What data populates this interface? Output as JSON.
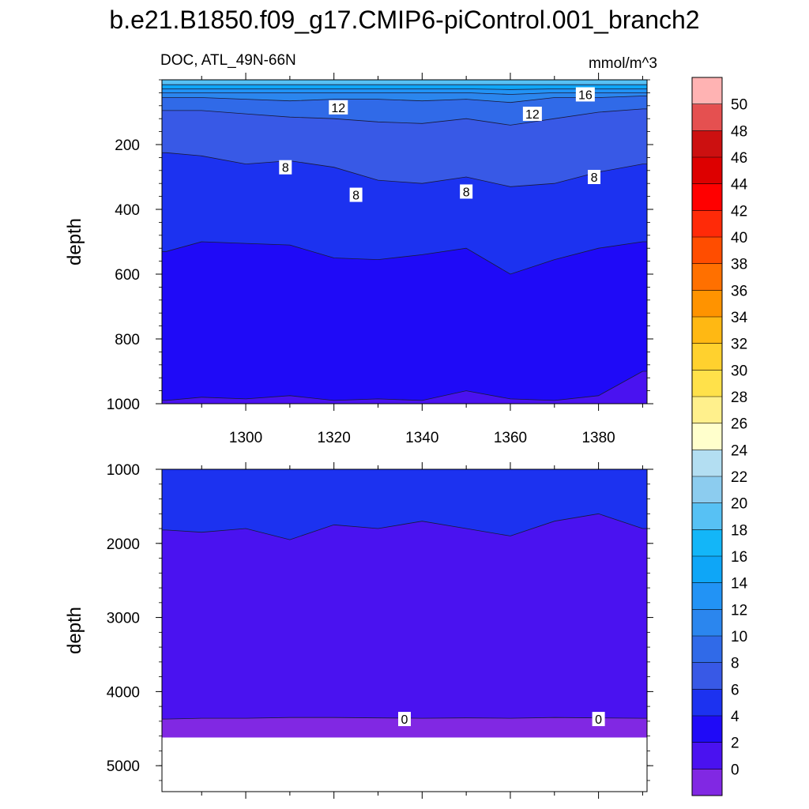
{
  "figure": {
    "title": "b.e21.B1850.f09_g17.CMIP6-piControl.001_branch2",
    "left_label": "DOC, ATL_49N-66N",
    "units": "mmol/m^3"
  },
  "colorbar": {
    "labels": [
      "0",
      "2",
      "4",
      "6",
      "8",
      "10",
      "12",
      "14",
      "16",
      "18",
      "20",
      "22",
      "24",
      "26",
      "28",
      "30",
      "32",
      "34",
      "36",
      "38",
      "40",
      "42",
      "44",
      "46",
      "48",
      "50"
    ],
    "colors": [
      "#8128e3",
      "#4a12f0",
      "#1f0af7",
      "#1c32f0",
      "#3859e6",
      "#306ae8",
      "#2b86ee",
      "#2293f5",
      "#0ea6f7",
      "#13b6f8",
      "#57c1f4",
      "#8cccef",
      "#b3def2",
      "#ffffcc",
      "#fff08c",
      "#ffe14a",
      "#ffd12e",
      "#ffb813",
      "#ff9300",
      "#ff7000",
      "#ff4d00",
      "#ff2a08",
      "#ff0000",
      "#dd0000",
      "#cc1010",
      "#e55050",
      "#ffb3b3"
    ]
  },
  "chart_data": [
    {
      "type": "contour",
      "panel": "upper",
      "title": "DOC, ATL_49N-66N",
      "xlabel": "",
      "ylabel": "depth",
      "units": "mmol/m^3",
      "xlim": [
        1281,
        1391
      ],
      "ylim": [
        1000,
        0
      ],
      "x_ticks": [
        1300,
        1320,
        1340,
        1360,
        1380
      ],
      "y_ticks": [
        200,
        400,
        600,
        800,
        1000
      ],
      "x": [
        1282,
        1290,
        1300,
        1310,
        1320,
        1330,
        1340,
        1350,
        1360,
        1370,
        1380,
        1390
      ],
      "contours": [
        {
          "level": 2,
          "depths": [
            990,
            980,
            985,
            975,
            990,
            985,
            990,
            960,
            985,
            990,
            975,
            900
          ]
        },
        {
          "level": 4,
          "depths": [
            530,
            500,
            505,
            510,
            550,
            555,
            540,
            520,
            600,
            555,
            520,
            500
          ]
        },
        {
          "level": 6,
          "depths": [
            225,
            235,
            260,
            250,
            270,
            310,
            320,
            300,
            330,
            320,
            285,
            260
          ]
        },
        {
          "level": 8,
          "depths": [
            95,
            95,
            105,
            115,
            120,
            130,
            135,
            120,
            140,
            120,
            100,
            90
          ]
        },
        {
          "level": 10,
          "depths": [
            55,
            55,
            60,
            65,
            60,
            60,
            65,
            60,
            70,
            55,
            55,
            50
          ]
        },
        {
          "level": 12,
          "depths": [
            40,
            40,
            40,
            40,
            40,
            40,
            40,
            40,
            45,
            40,
            40,
            40
          ]
        },
        {
          "level": 14,
          "depths": [
            28,
            28,
            28,
            28,
            28,
            28,
            28,
            28,
            30,
            28,
            28,
            28
          ]
        },
        {
          "level": 16,
          "depths": [
            15,
            15,
            15,
            15,
            15,
            15,
            15,
            15,
            15,
            15,
            15,
            15
          ]
        }
      ],
      "contour_labels": [
        {
          "text": "16",
          "x": 1377,
          "y": 45
        },
        {
          "text": "12",
          "x": 1321,
          "y": 85
        },
        {
          "text": "12",
          "x": 1365,
          "y": 105
        },
        {
          "text": "8",
          "x": 1309,
          "y": 270
        },
        {
          "text": "8",
          "x": 1325,
          "y": 355
        },
        {
          "text": "8",
          "x": 1350,
          "y": 345
        },
        {
          "text": "8",
          "x": 1379,
          "y": 300
        }
      ]
    },
    {
      "type": "contour",
      "panel": "lower",
      "title": "",
      "xlabel": "",
      "ylabel": "depth",
      "units": "mmol/m^3",
      "xlim": [
        1281,
        1391
      ],
      "ylim": [
        5350,
        1000
      ],
      "y_ticks": [
        1000,
        2000,
        3000,
        4000,
        5000
      ],
      "x": [
        1282,
        1290,
        1300,
        1310,
        1320,
        1330,
        1340,
        1350,
        1360,
        1370,
        1380,
        1390
      ],
      "contours": [
        {
          "level": 2,
          "depths": [
            1820,
            1850,
            1800,
            1950,
            1750,
            1800,
            1700,
            1800,
            1900,
            1700,
            1600,
            1800
          ]
        },
        {
          "level": 0,
          "depths": [
            4370,
            4360,
            4360,
            4350,
            4350,
            4355,
            4360,
            4355,
            4360,
            4350,
            4355,
            4360
          ]
        }
      ],
      "data_bottom_depth": 4620,
      "contour_labels": [
        {
          "text": "0",
          "x": 1336,
          "y": 4370
        },
        {
          "text": "0",
          "x": 1380,
          "y": 4370
        }
      ]
    }
  ]
}
